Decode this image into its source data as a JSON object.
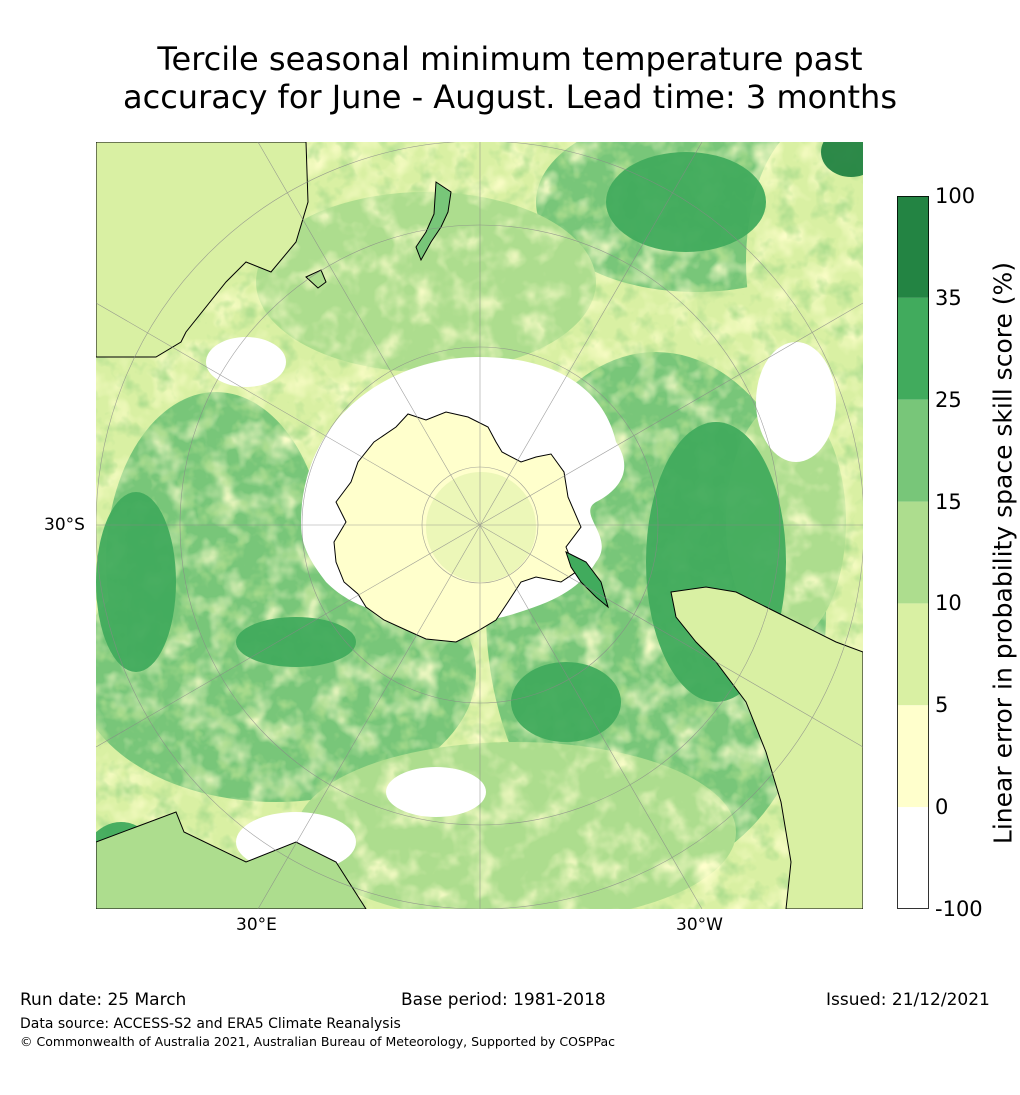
{
  "title": {
    "line1": "Tercile seasonal minimum temperature past",
    "line2": "accuracy for June - August. Lead time: 3 months"
  },
  "map": {
    "projection": "south-polar-stereographic",
    "labels": {
      "lat_left": "30°S",
      "lon_bottom_left": "30°E",
      "lon_bottom_right": "30°W"
    }
  },
  "colorbar": {
    "label": "Linear error in probability space skill score (%)",
    "ticks": [
      "-100",
      "0",
      "5",
      "10",
      "15",
      "25",
      "35",
      "100"
    ],
    "bins": [
      {
        "range": "-100 to 0",
        "color": "#ffffff"
      },
      {
        "range": "0 to 5",
        "color": "#ffffcc"
      },
      {
        "range": "5 to 10",
        "color": "#d9f0a3"
      },
      {
        "range": "10 to 15",
        "color": "#addd8e"
      },
      {
        "range": "15 to 25",
        "color": "#78c679"
      },
      {
        "range": "25 to 35",
        "color": "#41ab5d"
      },
      {
        "range": "35 to 100",
        "color": "#238443"
      }
    ]
  },
  "footer": {
    "run_date": "Run date: 25 March",
    "base_period": "Base period: 1981-2018",
    "issued": "Issued: 21/12/2021",
    "data_source": "Data source: ACCESS-S2 and ERA5 Climate Reanalysis",
    "copyright": "© Commonwealth of Australia 2021, Australian Bureau of Meteorology, Supported by COSPPac"
  }
}
